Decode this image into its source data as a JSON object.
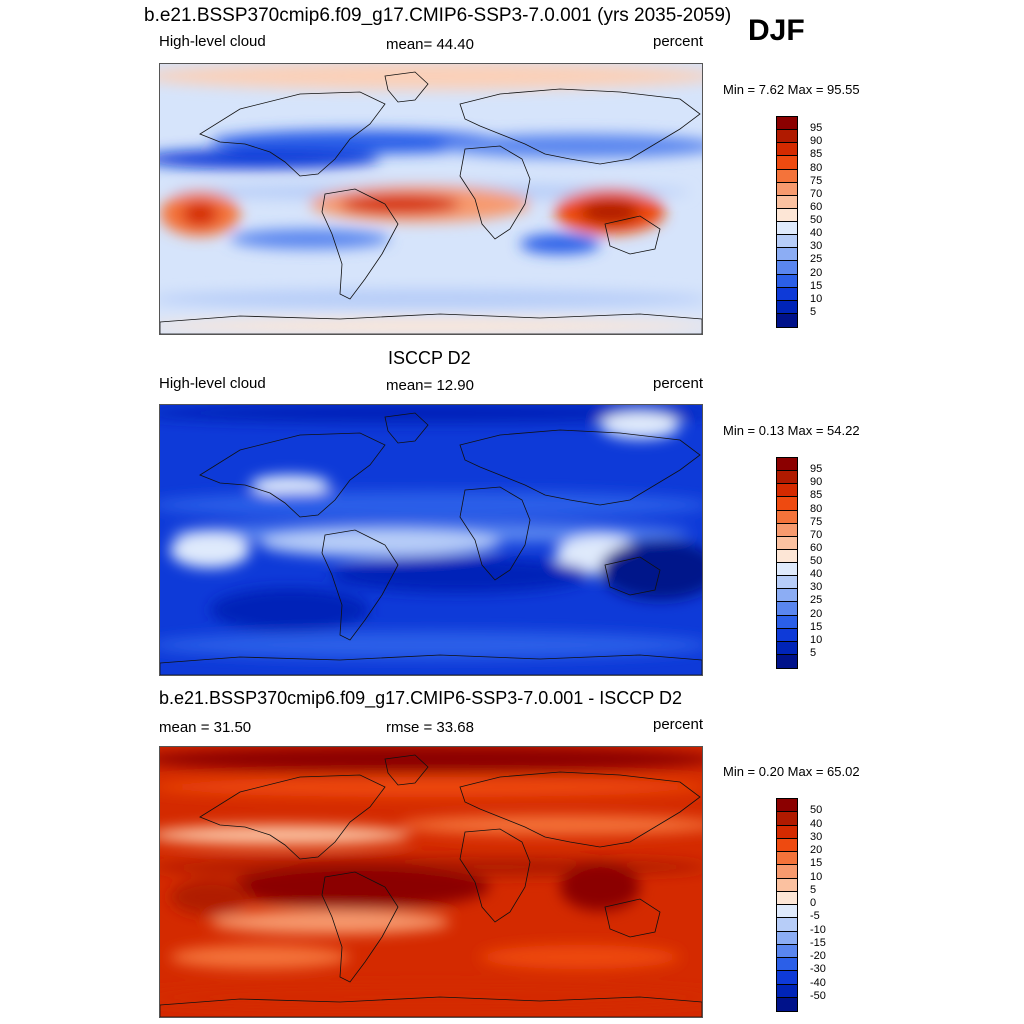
{
  "header": {
    "title": "b.e21.BSSP370cmip6.f09_g17.CMIP6-SSP3-7.0.001 (yrs 2035-2059)",
    "season": "DJF"
  },
  "panels": [
    {
      "title": "",
      "left_label": "High-level cloud",
      "center_label": "mean=  44.40",
      "right_label": "percent",
      "minmax": "Min =   7.62 Max =  95.55",
      "scale": "abs",
      "colorbar": {
        "labels": [
          "95",
          "90",
          "85",
          "80",
          "75",
          "70",
          "60",
          "50",
          "40",
          "30",
          "25",
          "20",
          "15",
          "10",
          "5"
        ],
        "colors": [
          "#8b0000",
          "#b01a00",
          "#d42a00",
          "#ee4a10",
          "#f4733a",
          "#f79a6e",
          "#fbc1a0",
          "#fde6d6",
          "#dfeafc",
          "#b7cdf8",
          "#8cadf4",
          "#5a86ef",
          "#2b5fe8",
          "#0e3ad8",
          "#0024b8",
          "#00128a"
        ]
      }
    },
    {
      "title": "ISCCP D2",
      "left_label": "High-level cloud",
      "center_label": "mean=  12.90",
      "right_label": "percent",
      "minmax": "Min =   0.13 Max =  54.22",
      "scale": "abs",
      "colorbar": {
        "labels": [
          "95",
          "90",
          "85",
          "80",
          "75",
          "70",
          "60",
          "50",
          "40",
          "30",
          "25",
          "20",
          "15",
          "10",
          "5"
        ],
        "colors": [
          "#8b0000",
          "#b01a00",
          "#d42a00",
          "#ee4a10",
          "#f4733a",
          "#f79a6e",
          "#fbc1a0",
          "#fde6d6",
          "#dfeafc",
          "#b7cdf8",
          "#8cadf4",
          "#5a86ef",
          "#2b5fe8",
          "#0e3ad8",
          "#0024b8",
          "#00128a"
        ]
      }
    },
    {
      "title": "b.e21.BSSP370cmip6.f09_g17.CMIP6-SSP3-7.0.001 - ISCCP D2",
      "left_label": "mean =  31.50",
      "center_label": "rmse =  33.68",
      "right_label": "percent",
      "minmax": "Min =   0.20 Max =  65.02",
      "scale": "diff",
      "colorbar": {
        "labels": [
          "50",
          "40",
          "30",
          "20",
          "15",
          "10",
          "5",
          "0",
          "-5",
          "-10",
          "-15",
          "-20",
          "-30",
          "-40",
          "-50"
        ],
        "colors": [
          "#8b0000",
          "#b01a00",
          "#d42a00",
          "#ee4a10",
          "#f4733a",
          "#f79a6e",
          "#fbc1a0",
          "#fde6d6",
          "#dfeafc",
          "#b7cdf8",
          "#8cadf4",
          "#5a86ef",
          "#2b5fe8",
          "#0e3ad8",
          "#0024b8",
          "#00128a"
        ]
      }
    }
  ]
}
